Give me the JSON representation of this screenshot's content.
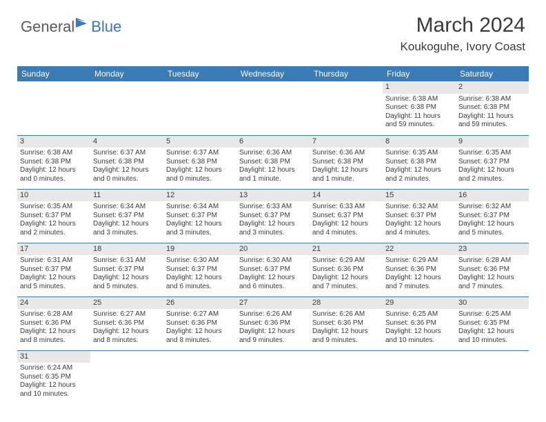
{
  "logo": {
    "part1": "General",
    "part2": "Blue"
  },
  "title": "March 2024",
  "location": "Koukoguhe, Ivory Coast",
  "colors": {
    "header_bg": "#3a7ab5",
    "header_text": "#ffffff",
    "daynum_bg": "#e8e8e8",
    "border": "#3a7ab5",
    "text": "#3a3a3a"
  },
  "weekdays": [
    "Sunday",
    "Monday",
    "Tuesday",
    "Wednesday",
    "Thursday",
    "Friday",
    "Saturday"
  ],
  "weeks": [
    [
      {
        "n": "",
        "sr": "",
        "ss": "",
        "dl": ""
      },
      {
        "n": "",
        "sr": "",
        "ss": "",
        "dl": ""
      },
      {
        "n": "",
        "sr": "",
        "ss": "",
        "dl": ""
      },
      {
        "n": "",
        "sr": "",
        "ss": "",
        "dl": ""
      },
      {
        "n": "",
        "sr": "",
        "ss": "",
        "dl": ""
      },
      {
        "n": "1",
        "sr": "Sunrise: 6:38 AM",
        "ss": "Sunset: 6:38 PM",
        "dl": "Daylight: 11 hours and 59 minutes."
      },
      {
        "n": "2",
        "sr": "Sunrise: 6:38 AM",
        "ss": "Sunset: 6:38 PM",
        "dl": "Daylight: 11 hours and 59 minutes."
      }
    ],
    [
      {
        "n": "3",
        "sr": "Sunrise: 6:38 AM",
        "ss": "Sunset: 6:38 PM",
        "dl": "Daylight: 12 hours and 0 minutes."
      },
      {
        "n": "4",
        "sr": "Sunrise: 6:37 AM",
        "ss": "Sunset: 6:38 PM",
        "dl": "Daylight: 12 hours and 0 minutes."
      },
      {
        "n": "5",
        "sr": "Sunrise: 6:37 AM",
        "ss": "Sunset: 6:38 PM",
        "dl": "Daylight: 12 hours and 0 minutes."
      },
      {
        "n": "6",
        "sr": "Sunrise: 6:36 AM",
        "ss": "Sunset: 6:38 PM",
        "dl": "Daylight: 12 hours and 1 minute."
      },
      {
        "n": "7",
        "sr": "Sunrise: 6:36 AM",
        "ss": "Sunset: 6:38 PM",
        "dl": "Daylight: 12 hours and 1 minute."
      },
      {
        "n": "8",
        "sr": "Sunrise: 6:35 AM",
        "ss": "Sunset: 6:38 PM",
        "dl": "Daylight: 12 hours and 2 minutes."
      },
      {
        "n": "9",
        "sr": "Sunrise: 6:35 AM",
        "ss": "Sunset: 6:37 PM",
        "dl": "Daylight: 12 hours and 2 minutes."
      }
    ],
    [
      {
        "n": "10",
        "sr": "Sunrise: 6:35 AM",
        "ss": "Sunset: 6:37 PM",
        "dl": "Daylight: 12 hours and 2 minutes."
      },
      {
        "n": "11",
        "sr": "Sunrise: 6:34 AM",
        "ss": "Sunset: 6:37 PM",
        "dl": "Daylight: 12 hours and 3 minutes."
      },
      {
        "n": "12",
        "sr": "Sunrise: 6:34 AM",
        "ss": "Sunset: 6:37 PM",
        "dl": "Daylight: 12 hours and 3 minutes."
      },
      {
        "n": "13",
        "sr": "Sunrise: 6:33 AM",
        "ss": "Sunset: 6:37 PM",
        "dl": "Daylight: 12 hours and 3 minutes."
      },
      {
        "n": "14",
        "sr": "Sunrise: 6:33 AM",
        "ss": "Sunset: 6:37 PM",
        "dl": "Daylight: 12 hours and 4 minutes."
      },
      {
        "n": "15",
        "sr": "Sunrise: 6:32 AM",
        "ss": "Sunset: 6:37 PM",
        "dl": "Daylight: 12 hours and 4 minutes."
      },
      {
        "n": "16",
        "sr": "Sunrise: 6:32 AM",
        "ss": "Sunset: 6:37 PM",
        "dl": "Daylight: 12 hours and 5 minutes."
      }
    ],
    [
      {
        "n": "17",
        "sr": "Sunrise: 6:31 AM",
        "ss": "Sunset: 6:37 PM",
        "dl": "Daylight: 12 hours and 5 minutes."
      },
      {
        "n": "18",
        "sr": "Sunrise: 6:31 AM",
        "ss": "Sunset: 6:37 PM",
        "dl": "Daylight: 12 hours and 5 minutes."
      },
      {
        "n": "19",
        "sr": "Sunrise: 6:30 AM",
        "ss": "Sunset: 6:37 PM",
        "dl": "Daylight: 12 hours and 6 minutes."
      },
      {
        "n": "20",
        "sr": "Sunrise: 6:30 AM",
        "ss": "Sunset: 6:37 PM",
        "dl": "Daylight: 12 hours and 6 minutes."
      },
      {
        "n": "21",
        "sr": "Sunrise: 6:29 AM",
        "ss": "Sunset: 6:36 PM",
        "dl": "Daylight: 12 hours and 7 minutes."
      },
      {
        "n": "22",
        "sr": "Sunrise: 6:29 AM",
        "ss": "Sunset: 6:36 PM",
        "dl": "Daylight: 12 hours and 7 minutes."
      },
      {
        "n": "23",
        "sr": "Sunrise: 6:28 AM",
        "ss": "Sunset: 6:36 PM",
        "dl": "Daylight: 12 hours and 7 minutes."
      }
    ],
    [
      {
        "n": "24",
        "sr": "Sunrise: 6:28 AM",
        "ss": "Sunset: 6:36 PM",
        "dl": "Daylight: 12 hours and 8 minutes."
      },
      {
        "n": "25",
        "sr": "Sunrise: 6:27 AM",
        "ss": "Sunset: 6:36 PM",
        "dl": "Daylight: 12 hours and 8 minutes."
      },
      {
        "n": "26",
        "sr": "Sunrise: 6:27 AM",
        "ss": "Sunset: 6:36 PM",
        "dl": "Daylight: 12 hours and 8 minutes."
      },
      {
        "n": "27",
        "sr": "Sunrise: 6:26 AM",
        "ss": "Sunset: 6:36 PM",
        "dl": "Daylight: 12 hours and 9 minutes."
      },
      {
        "n": "28",
        "sr": "Sunrise: 6:26 AM",
        "ss": "Sunset: 6:36 PM",
        "dl": "Daylight: 12 hours and 9 minutes."
      },
      {
        "n": "29",
        "sr": "Sunrise: 6:25 AM",
        "ss": "Sunset: 6:36 PM",
        "dl": "Daylight: 12 hours and 10 minutes."
      },
      {
        "n": "30",
        "sr": "Sunrise: 6:25 AM",
        "ss": "Sunset: 6:35 PM",
        "dl": "Daylight: 12 hours and 10 minutes."
      }
    ],
    [
      {
        "n": "31",
        "sr": "Sunrise: 6:24 AM",
        "ss": "Sunset: 6:35 PM",
        "dl": "Daylight: 12 hours and 10 minutes."
      },
      {
        "n": "",
        "sr": "",
        "ss": "",
        "dl": ""
      },
      {
        "n": "",
        "sr": "",
        "ss": "",
        "dl": ""
      },
      {
        "n": "",
        "sr": "",
        "ss": "",
        "dl": ""
      },
      {
        "n": "",
        "sr": "",
        "ss": "",
        "dl": ""
      },
      {
        "n": "",
        "sr": "",
        "ss": "",
        "dl": ""
      },
      {
        "n": "",
        "sr": "",
        "ss": "",
        "dl": ""
      }
    ]
  ]
}
